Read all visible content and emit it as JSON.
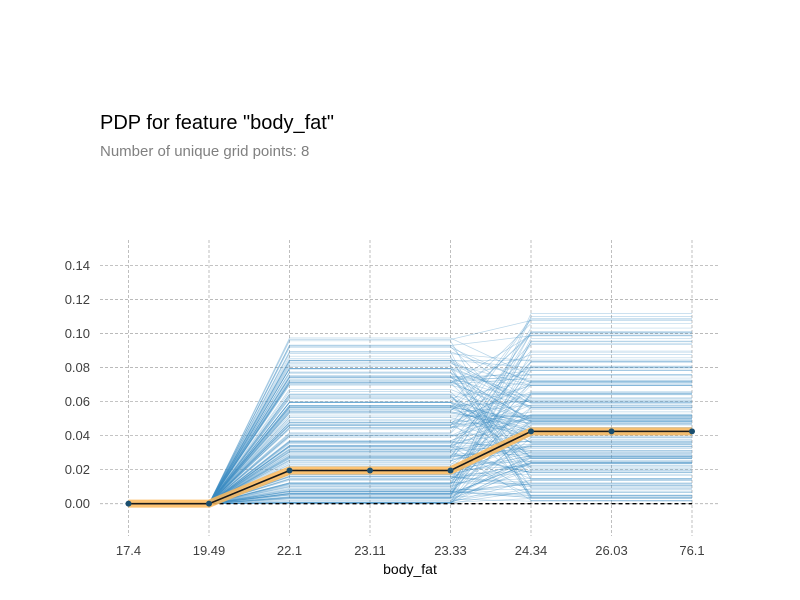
{
  "chart_data": {
    "type": "line",
    "title": "PDP for feature \"body_fat\"",
    "subtitle": "Number of unique grid points: 8",
    "xlabel": "body_fat",
    "ylabel": "",
    "categories": [
      "17.4",
      "19.49",
      "22.1",
      "23.11",
      "23.33",
      "24.34",
      "26.03",
      "76.1"
    ],
    "yticks": [
      "0.00",
      "0.02",
      "0.04",
      "0.06",
      "0.08",
      "0.10",
      "0.12",
      "0.14"
    ],
    "ylim": [
      -0.019,
      0.155
    ],
    "grid": true,
    "series": [
      {
        "values": [
          0.0,
          0.0,
          0.0195,
          0.0195,
          0.0195,
          0.0425,
          0.0425,
          0.0425
        ]
      }
    ],
    "ice_range": {
      "group_a_max": 0.098,
      "group_b_max": 0.113
    },
    "baseline": 0.0,
    "colors": {
      "pdp_line": "#1a1a1a",
      "pdp_band": "#FDB85A",
      "pdp_marker": "#1A4E6E",
      "ice_lines": "#3D8BC4",
      "baseline": "#000000",
      "grid": "#b0b0b0"
    }
  }
}
